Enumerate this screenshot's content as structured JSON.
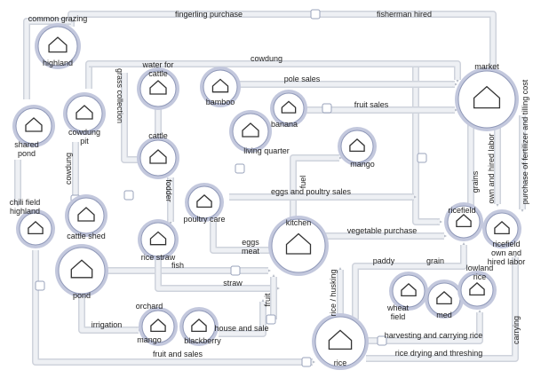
{
  "nodes": [
    {
      "lines": [
        "common grazing",
        "highland"
      ]
    },
    {
      "lines": [
        "shared",
        "pond"
      ]
    },
    {
      "lines": [
        "cowdung",
        "pit"
      ]
    },
    {
      "lines": [
        "water for",
        "cattle"
      ]
    },
    {
      "lines": [
        "cattle"
      ]
    },
    {
      "lines": [
        "bamboo"
      ]
    },
    {
      "lines": [
        "banana"
      ]
    },
    {
      "lines": [
        "living quarter"
      ]
    },
    {
      "lines": [
        "mango"
      ]
    },
    {
      "lines": [
        "market"
      ]
    },
    {
      "lines": [
        "chili field",
        "highland"
      ]
    },
    {
      "lines": [
        "cattle shed"
      ]
    },
    {
      "lines": [
        "poultry care"
      ]
    },
    {
      "lines": [
        "rice straw"
      ]
    },
    {
      "lines": [
        "kitchen"
      ]
    },
    {
      "lines": [
        "ricefield"
      ]
    },
    {
      "lines": [
        "ricefield",
        "own and",
        "hired labor"
      ]
    },
    {
      "lines": [
        "pond"
      ]
    },
    {
      "lines": [
        "orchard",
        "mango"
      ]
    },
    {
      "lines": [
        "blackberry"
      ]
    },
    {
      "lines": [
        "wheat",
        "field"
      ]
    },
    {
      "lines": [
        "med"
      ]
    },
    {
      "lines": [
        "lowland",
        "rice"
      ]
    },
    {
      "lines": [
        "rice"
      ]
    }
  ],
  "edges": [
    "fingerling purchase",
    "fisherman hired",
    "cowdung",
    "grass collection",
    "pole sales",
    "fruit sales",
    "cowdung",
    "fodder",
    "fuel",
    "eggs and poultry sales",
    "eggs",
    "meat",
    "vegetable purchase",
    "grains",
    "own and hired labor",
    "purchase of fertilizer and tilling cost",
    "fish",
    "straw",
    "fruit",
    "paddy",
    "grain",
    "rice / husking",
    "irrigation",
    "house and sale",
    "fruit and sales",
    "harvesting and carrying rice",
    "rice drying and threshing",
    "carrying"
  ]
}
